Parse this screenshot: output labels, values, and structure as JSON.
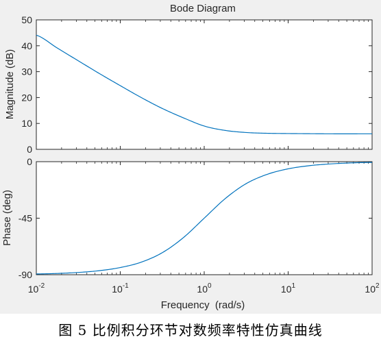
{
  "figure": {
    "caption": "图 5   比例积分环节对数频率特性仿真曲线"
  },
  "chart_data": {
    "type": "line",
    "title": "Bode Diagram",
    "xlabel": "Frequency  (rad/s)",
    "xscale": "log",
    "xlim": [
      0.01,
      100
    ],
    "x_ticks": [
      0.01,
      0.1,
      1,
      10,
      100
    ],
    "x_tick_labels": [
      {
        "base": "10",
        "exp": "-2"
      },
      {
        "base": "10",
        "exp": "-1"
      },
      {
        "base": "10",
        "exp": "0"
      },
      {
        "base": "10",
        "exp": "1"
      },
      {
        "base": "10",
        "exp": "2"
      }
    ],
    "grid": false,
    "line_color": "#0072bd",
    "subplots": [
      {
        "name": "magnitude",
        "ylabel": "Magnitude (dB)",
        "ylim": [
          0,
          50
        ],
        "y_ticks": [
          0,
          10,
          20,
          30,
          40,
          50
        ],
        "y_tick_labels": [
          "0",
          "10",
          "20",
          "30",
          "40",
          "50"
        ],
        "series": [
          {
            "x": [
              0.01,
              0.0178,
              0.0316,
              0.0562,
              0.1,
              0.178,
              0.316,
              0.562,
              1,
              1.78,
              3.16,
              5.62,
              10,
              31.6,
              100
            ],
            "values": [
              44.1,
              39.1,
              34.2,
              29.3,
              24.6,
              20.0,
              15.8,
              12.2,
              9.0,
              7.3,
              6.5,
              6.2,
              6.1,
              6.0,
              6.0
            ]
          }
        ]
      },
      {
        "name": "phase",
        "ylabel": "Phase (deg)",
        "ylim": [
          -90,
          0
        ],
        "y_ticks": [
          -90,
          -45,
          0
        ],
        "y_tick_labels": [
          "-90",
          "-45",
          "0"
        ],
        "series": [
          {
            "x": [
              0.01,
              0.0178,
              0.0316,
              0.0562,
              0.1,
              0.178,
              0.316,
              0.562,
              1,
              1.78,
              3.16,
              5.62,
              10,
              17.8,
              31.6,
              56.2,
              100
            ],
            "values": [
              -89.4,
              -89.0,
              -88.2,
              -86.8,
              -84.3,
              -80.0,
              -72.5,
              -60.6,
              -45.0,
              -29.4,
              -17.5,
              -10.1,
              -5.7,
              -3.2,
              -1.8,
              -1.0,
              -0.6
            ]
          }
        ]
      }
    ]
  }
}
